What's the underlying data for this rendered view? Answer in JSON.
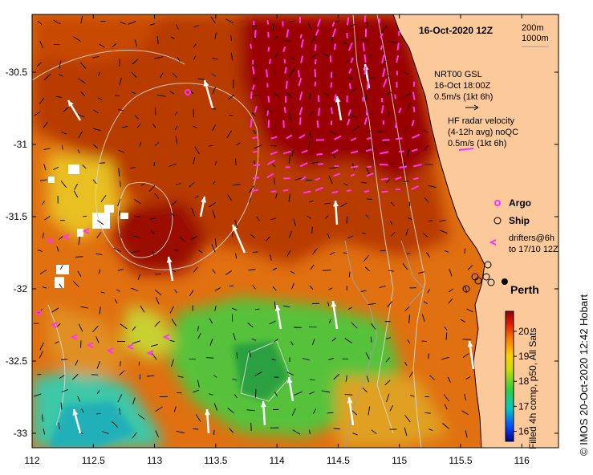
{
  "title": "16-Oct-2020 12Z",
  "depth_labels": [
    "200m",
    "1000m"
  ],
  "x_ticks": [
    {
      "lon": 112,
      "label": "112"
    },
    {
      "lon": 112.5,
      "label": "112.5"
    },
    {
      "lon": 113,
      "label": "113"
    },
    {
      "lon": 113.5,
      "label": "113.5"
    },
    {
      "lon": 114,
      "label": "114"
    },
    {
      "lon": 114.5,
      "label": "114.5"
    },
    {
      "lon": 115,
      "label": "115"
    },
    {
      "lon": 115.5,
      "label": "115.5"
    },
    {
      "lon": 116,
      "label": "116"
    }
  ],
  "y_ticks": [
    {
      "lat": -30.5,
      "label": "-30.5"
    },
    {
      "lat": -31,
      "label": "-31"
    },
    {
      "lat": -31.5,
      "label": "-31.5"
    },
    {
      "lat": -32,
      "label": "-32"
    },
    {
      "lat": -32.5,
      "label": "-32.5"
    },
    {
      "lat": -33,
      "label": "-33"
    }
  ],
  "map_extent": {
    "lon": [
      112,
      116.3
    ],
    "lat": [
      -33.1,
      -30.1
    ]
  },
  "wind_legend": {
    "lines": [
      "NRT00 GSL",
      "16-Oct 18:00Z",
      "0.5m/s (1kt 6h)"
    ]
  },
  "radar_legend": {
    "lines": [
      "HF radar velocity",
      "(4-12h avg) noQC",
      "0.5m/s (1kt 6h)"
    ]
  },
  "markers_legend": {
    "argo": "Argo",
    "ship": "Ship",
    "drifters": [
      "drifters@6h",
      "to 17/10 12Z"
    ]
  },
  "city": {
    "name": "Perth",
    "lon": 115.86,
    "lat": -31.95
  },
  "colorbar": {
    "min": 15.6,
    "max": 20.8,
    "ticks": [
      "16",
      "17",
      "18",
      "19",
      "20"
    ],
    "label": "Filled 4h comp, p50, All Sats"
  },
  "side_label": "© IMOS 20-Oct-2020 12:42 Hobart",
  "colors": {
    "land": "#fbc99a",
    "warm": "#a00000",
    "cool": "#3cc8a8",
    "radar_arrow": "#ff33ff"
  }
}
